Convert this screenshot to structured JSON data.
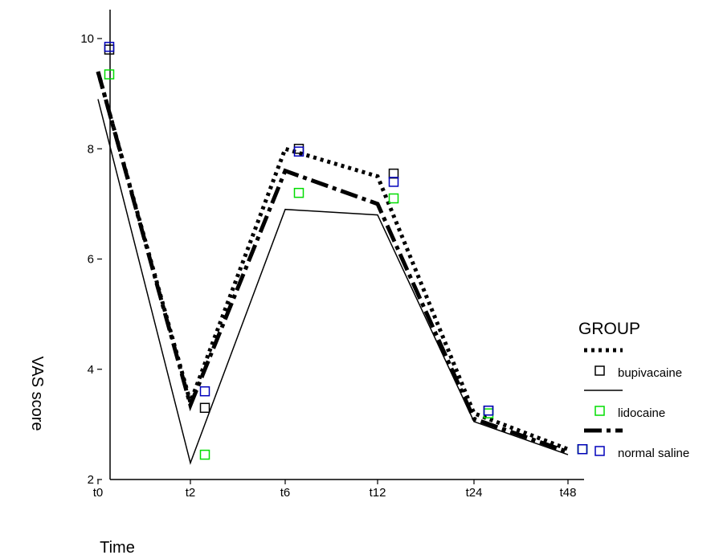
{
  "chart_data": {
    "type": "line",
    "title": "",
    "xlabel": "Time",
    "ylabel": "VAS score",
    "categories": [
      "t0",
      "t2",
      "t6",
      "t12",
      "t24",
      "t48"
    ],
    "ylim": [
      2,
      10.5
    ],
    "yticks": [
      2,
      4,
      6,
      8,
      10
    ],
    "grid": false,
    "legend": {
      "title": "GROUP",
      "position": "right"
    },
    "series": [
      {
        "name": "bupivacaine",
        "line_style": "dotted",
        "marker_color": "#000000",
        "line_values": [
          9.4,
          3.4,
          8.0,
          7.5,
          3.2,
          2.55
        ],
        "mean_values": [
          9.8,
          3.3,
          8.0,
          7.55,
          3.25,
          2.55
        ]
      },
      {
        "name": "lidocaine",
        "line_style": "solid",
        "marker_color": "#00dd00",
        "line_values": [
          8.9,
          2.3,
          6.9,
          6.8,
          3.05,
          2.45
        ],
        "mean_values": [
          9.35,
          2.45,
          7.2,
          7.1,
          3.2,
          2.55
        ]
      },
      {
        "name": "normal saline",
        "line_style": "dash-dot",
        "marker_color": "#0000bb",
        "line_values": [
          9.4,
          3.35,
          7.6,
          7.0,
          3.1,
          2.5
        ],
        "mean_values": [
          9.85,
          3.6,
          7.95,
          7.4,
          3.25,
          2.55
        ]
      }
    ]
  }
}
